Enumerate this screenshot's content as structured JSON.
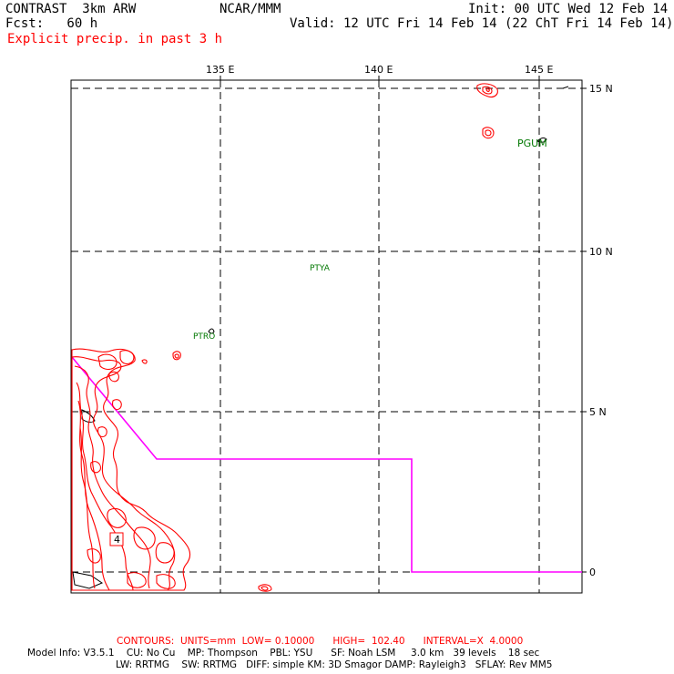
{
  "header": {
    "model": "CONTRAST  3km ARW",
    "center": "NCAR/MMM",
    "init": "Init: 00 UTC Wed 12 Feb 14",
    "fcst": "Fcst:   60 h",
    "valid": "Valid: 12 UTC Fri 14 Feb 14 (22 ChT Fri 14 Feb 14)",
    "field": "Explicit precip. in past 3 h"
  },
  "map": {
    "lon_labels": [
      "135 E",
      "140 E",
      "145 E"
    ],
    "lat_labels": [
      "15 N",
      "10 N",
      "5 N",
      "0"
    ],
    "stations": [
      {
        "id": "PGUM",
        "lon": 144.8,
        "lat": 13.5
      },
      {
        "id": "PTYA",
        "lon": 138.1,
        "lat": 9.5
      },
      {
        "id": "PTRO",
        "lon": 134.5,
        "lat": 7.4
      }
    ],
    "contour_label": "4",
    "colors": {
      "precip": "#ff0000",
      "boundary": "#ff00ff",
      "station": "#007700",
      "grid": "#000000"
    }
  },
  "footer": {
    "contours": "CONTOURS:  UNITS=mm  LOW= 0.10000      HIGH=  102.40      INTERVAL=X  4.0000",
    "model_info_1": "Model Info: V3.5.1    CU: No Cu    MP: Thompson    PBL: YSU      SF: Noah LSM     3.0 km   39 levels    18 sec",
    "model_info_2": "LW: RRTMG    SW: RRTMG   DIFF: simple KM: 3D Smagor DAMP: Rayleigh3   SFLAY: Rev MM5"
  }
}
